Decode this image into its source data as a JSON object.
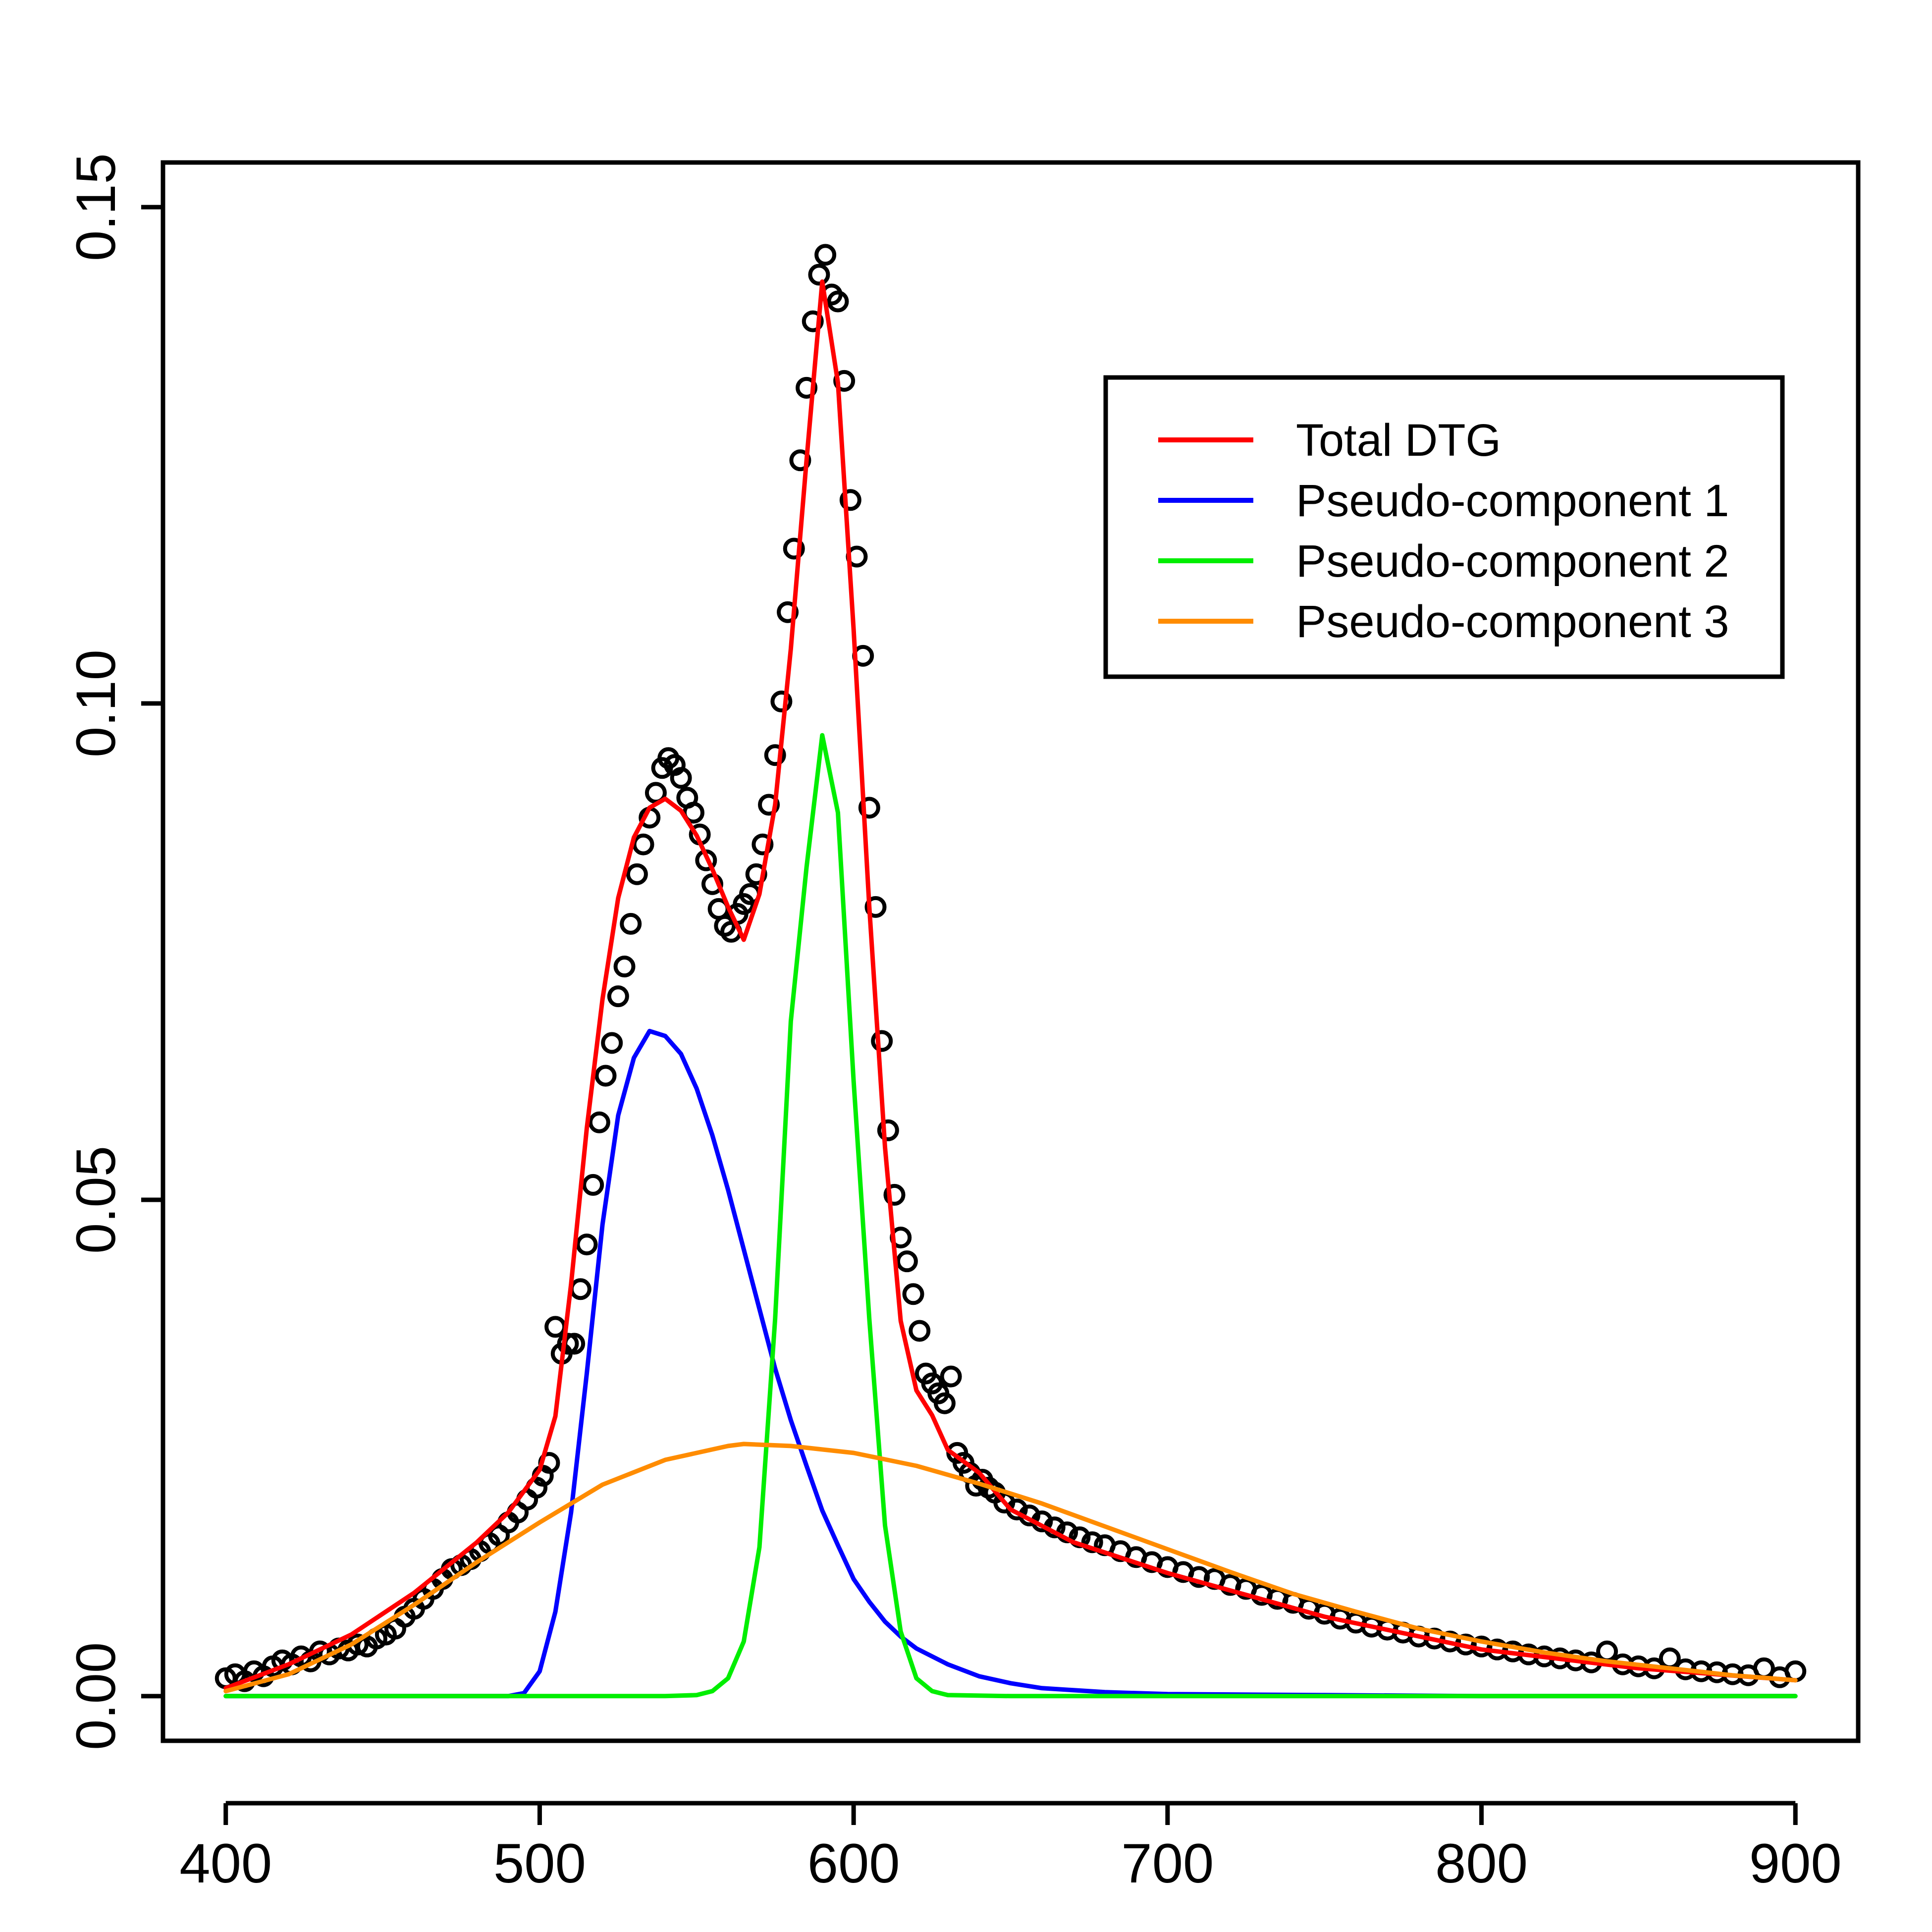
{
  "chart_data": {
    "type": "line",
    "title": "",
    "xlabel": "",
    "ylabel": "",
    "xlim": [
      380,
      920
    ],
    "ylim": [
      -0.0045,
      0.1545
    ],
    "x_ticks": [
      400,
      500,
      600,
      700,
      800,
      900
    ],
    "x_tick_labels": [
      "400",
      "500",
      "600",
      "700",
      "800",
      "900"
    ],
    "y_ticks": [
      0.0,
      0.05,
      0.1,
      0.15
    ],
    "y_tick_labels": [
      "0.00",
      "0.05",
      "0.10",
      "0.15"
    ],
    "grid": false,
    "legend_position": "top-right",
    "series": [
      {
        "name": "Total DTG",
        "color": "#ff0000",
        "x": [
          400,
          420,
          440,
          460,
          480,
          490,
          500,
          505,
          510,
          515,
          520,
          525,
          530,
          535,
          540,
          545,
          550,
          555,
          560,
          565,
          570,
          575,
          580,
          585,
          590,
          595,
          600,
          605,
          610,
          615,
          620,
          625,
          630,
          640,
          650,
          670,
          700,
          750,
          800,
          850,
          900
        ],
        "y": [
          0.0008,
          0.0032,
          0.0062,
          0.0104,
          0.0155,
          0.0185,
          0.0228,
          0.0282,
          0.0415,
          0.0572,
          0.0702,
          0.0804,
          0.0865,
          0.0895,
          0.0904,
          0.0892,
          0.0867,
          0.0833,
          0.0795,
          0.0762,
          0.0808,
          0.0898,
          0.1055,
          0.1245,
          0.1425,
          0.1323,
          0.1075,
          0.0795,
          0.0553,
          0.0378,
          0.0308,
          0.0283,
          0.0248,
          0.0225,
          0.0188,
          0.0155,
          0.0124,
          0.008,
          0.0047,
          0.0028,
          0.0016
        ]
      },
      {
        "name": "Pseudo-component 1",
        "color": "#0000ff",
        "x": [
          400,
          480,
          490,
          495,
          500,
          505,
          510,
          515,
          520,
          525,
          530,
          535,
          540,
          545,
          550,
          555,
          560,
          565,
          570,
          575,
          580,
          585,
          590,
          595,
          600,
          605,
          610,
          615,
          620,
          630,
          640,
          650,
          660,
          680,
          700,
          750,
          800,
          850,
          900
        ],
        "y": [
          0,
          0,
          0,
          0.0003,
          0.0025,
          0.0085,
          0.0185,
          0.0325,
          0.0475,
          0.0585,
          0.0643,
          0.067,
          0.0665,
          0.0647,
          0.0612,
          0.0565,
          0.051,
          0.045,
          0.039,
          0.033,
          0.0278,
          0.0232,
          0.0187,
          0.0152,
          0.0118,
          0.0095,
          0.0075,
          0.006,
          0.0048,
          0.0032,
          0.002,
          0.0013,
          0.0008,
          0.0004,
          0.0002,
          0.0001,
          0,
          0,
          0
        ]
      },
      {
        "name": "Pseudo-component 2",
        "color": "#00ee00",
        "x": [
          400,
          540,
          550,
          555,
          560,
          565,
          570,
          575,
          580,
          585,
          590,
          595,
          600,
          605,
          610,
          615,
          620,
          625,
          630,
          650,
          700,
          800,
          900
        ],
        "y": [
          0,
          0,
          0.0001,
          0.0005,
          0.0018,
          0.0055,
          0.015,
          0.038,
          0.068,
          0.0835,
          0.0968,
          0.089,
          0.062,
          0.038,
          0.0172,
          0.0065,
          0.0018,
          0.0005,
          0.0001,
          0,
          0,
          0,
          0
        ]
      },
      {
        "name": "Pseudo-component 3",
        "color": "#ff8c00",
        "x": [
          400,
          420,
          440,
          460,
          480,
          500,
          520,
          540,
          560,
          565,
          580,
          600,
          620,
          640,
          660,
          680,
          700,
          720,
          740,
          760,
          780,
          800,
          820,
          840,
          860,
          880,
          900
        ],
        "y": [
          0.0005,
          0.0022,
          0.0052,
          0.0092,
          0.0135,
          0.0175,
          0.0213,
          0.0238,
          0.0252,
          0.0254,
          0.0252,
          0.0245,
          0.0232,
          0.0214,
          0.0194,
          0.0171,
          0.0148,
          0.0125,
          0.0103,
          0.0085,
          0.0068,
          0.0055,
          0.0044,
          0.0035,
          0.0028,
          0.0021,
          0.0016
        ]
      }
    ],
    "observed_points": {
      "color": "#000000",
      "x": [
        400,
        403,
        406,
        409,
        412,
        415,
        418,
        421,
        424,
        427,
        430,
        433,
        436,
        439,
        442,
        445,
        448,
        451,
        454,
        457,
        460,
        463,
        466,
        469,
        472,
        475,
        478,
        481,
        484,
        487,
        490,
        493,
        496,
        499,
        501,
        503,
        505,
        507,
        509,
        511,
        513,
        515,
        517,
        519,
        521,
        523,
        525,
        527,
        529,
        531,
        533,
        535,
        537,
        539,
        541,
        543,
        545,
        547,
        549,
        551,
        553,
        555,
        557,
        559,
        561,
        563,
        565,
        567,
        569,
        571,
        573,
        575,
        577,
        579,
        581,
        583,
        585,
        587,
        589,
        591,
        593,
        595,
        597,
        599,
        601,
        603,
        605,
        607,
        609,
        611,
        613,
        615,
        617,
        619,
        621,
        623,
        625,
        627,
        629,
        631,
        633,
        635,
        637,
        639,
        641,
        643,
        645,
        648,
        652,
        656,
        660,
        664,
        668,
        672,
        676,
        680,
        685,
        690,
        695,
        700,
        705,
        710,
        715,
        720,
        725,
        730,
        735,
        740,
        745,
        750,
        755,
        760,
        765,
        770,
        775,
        780,
        785,
        790,
        795,
        800,
        805,
        810,
        815,
        820,
        825,
        830,
        835,
        840,
        845,
        850,
        855,
        860,
        865,
        870,
        875,
        880,
        885,
        890,
        895,
        900
      ],
      "y": [
        0.0018,
        0.0022,
        0.0015,
        0.0025,
        0.002,
        0.003,
        0.0036,
        0.0032,
        0.004,
        0.0035,
        0.0045,
        0.0042,
        0.0048,
        0.0046,
        0.0052,
        0.005,
        0.0058,
        0.0062,
        0.0068,
        0.008,
        0.0088,
        0.0098,
        0.0108,
        0.0118,
        0.0128,
        0.0132,
        0.0138,
        0.0146,
        0.0154,
        0.0162,
        0.0175,
        0.0185,
        0.0198,
        0.021,
        0.0222,
        0.0235,
        0.0372,
        0.0345,
        0.0355,
        0.0355,
        0.041,
        0.0455,
        0.0515,
        0.0578,
        0.0625,
        0.0658,
        0.0705,
        0.0735,
        0.0778,
        0.0828,
        0.0858,
        0.0885,
        0.091,
        0.0935,
        0.0945,
        0.0938,
        0.0925,
        0.0905,
        0.089,
        0.0868,
        0.0842,
        0.0818,
        0.0793,
        0.0776,
        0.077,
        0.0788,
        0.0798,
        0.0808,
        0.0828,
        0.0858,
        0.0898,
        0.0948,
        0.1002,
        0.1092,
        0.1156,
        0.1245,
        0.1318,
        0.1385,
        0.1432,
        0.1452,
        0.1412,
        0.1405,
        0.1325,
        0.1205,
        0.1148,
        0.1048,
        0.0895,
        0.0795,
        0.066,
        0.057,
        0.0505,
        0.0462,
        0.0438,
        0.0405,
        0.0368,
        0.0325,
        0.0315,
        0.0305,
        0.0295,
        0.0322,
        0.0245,
        0.0235,
        0.0225,
        0.0212,
        0.0218,
        0.021,
        0.0205,
        0.0195,
        0.0188,
        0.0182,
        0.0176,
        0.017,
        0.0165,
        0.016,
        0.0155,
        0.0152,
        0.0146,
        0.014,
        0.0135,
        0.013,
        0.0125,
        0.012,
        0.0118,
        0.0112,
        0.0108,
        0.0102,
        0.0098,
        0.0094,
        0.0088,
        0.0083,
        0.0078,
        0.0074,
        0.007,
        0.0067,
        0.0064,
        0.006,
        0.0058,
        0.0055,
        0.0052,
        0.005,
        0.0047,
        0.0045,
        0.0042,
        0.004,
        0.0038,
        0.0036,
        0.0034,
        0.0045,
        0.0032,
        0.003,
        0.0028,
        0.0038,
        0.0027,
        0.0025,
        0.0024,
        0.0022,
        0.0021,
        0.0028,
        0.0019,
        0.0025
      ]
    }
  }
}
